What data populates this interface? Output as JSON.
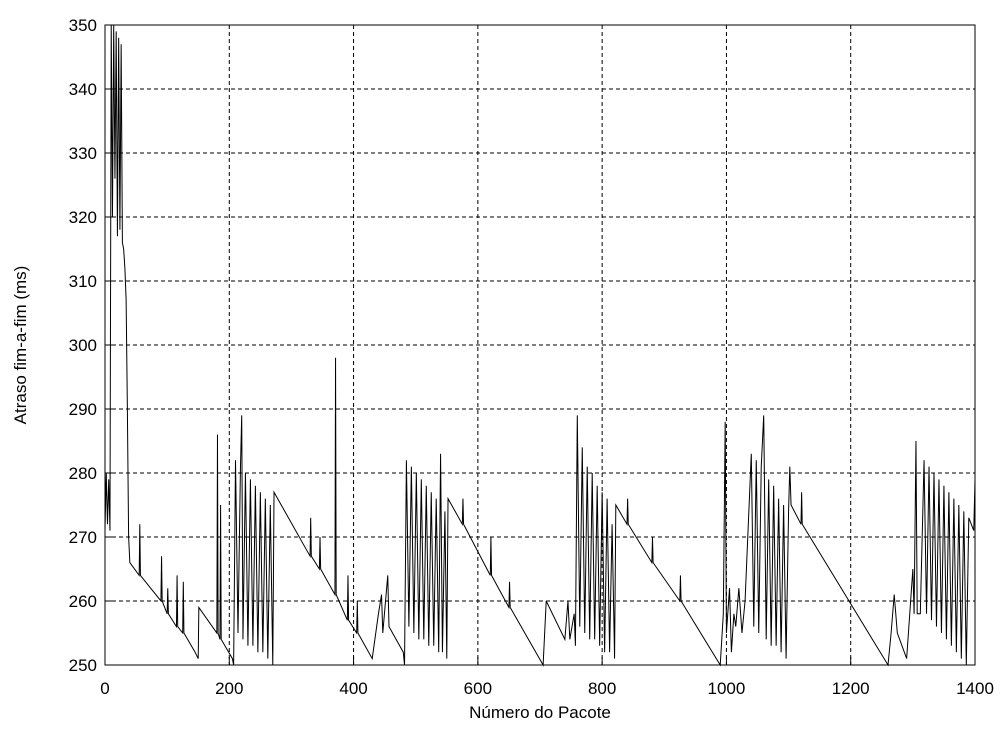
{
  "chart_data": {
    "type": "line",
    "xlabel": "Número do Pacote",
    "ylabel": "Atraso fim-a-fim (ms)",
    "color": "#000000",
    "grid": true,
    "xlim": [
      0,
      1400
    ],
    "xticks": [
      0,
      200,
      400,
      600,
      800,
      1000,
      1200,
      1400
    ],
    "ylim": [
      250,
      350
    ],
    "yticks": [
      250,
      260,
      270,
      280,
      290,
      300,
      310,
      320,
      330,
      340,
      350
    ],
    "x": [
      0,
      2,
      4,
      6,
      8,
      10,
      12,
      14,
      16,
      18,
      20,
      22,
      24,
      26,
      28,
      30,
      32,
      34,
      36,
      38,
      40,
      55,
      56,
      57,
      90,
      91,
      92,
      100,
      101,
      102,
      115,
      116,
      117,
      125,
      126,
      127,
      145,
      150,
      151,
      180,
      181,
      182,
      185,
      186,
      187,
      205,
      207,
      210,
      214,
      218,
      220,
      222,
      226,
      230,
      234,
      238,
      242,
      246,
      250,
      254,
      258,
      262,
      266,
      270,
      272,
      330,
      331,
      332,
      345,
      346,
      347,
      370,
      371,
      372,
      390,
      391,
      392,
      405,
      406,
      407,
      430,
      440,
      445,
      447,
      455,
      457,
      480,
      482,
      485,
      489,
      493,
      497,
      501,
      505,
      509,
      513,
      517,
      521,
      525,
      529,
      533,
      537,
      540,
      543,
      547,
      550,
      552,
      575,
      576,
      577,
      620,
      621,
      622,
      650,
      651,
      652,
      705,
      710,
      740,
      745,
      748,
      755,
      757,
      760,
      764,
      768,
      772,
      776,
      780,
      784,
      788,
      792,
      796,
      800,
      804,
      808,
      812,
      816,
      820,
      822,
      840,
      841,
      842,
      880,
      881,
      882,
      925,
      926,
      927,
      990,
      995,
      998,
      1000,
      1005,
      1008,
      1012,
      1015,
      1020,
      1025,
      1030,
      1040,
      1044,
      1048,
      1052,
      1056,
      1060,
      1064,
      1068,
      1072,
      1076,
      1080,
      1084,
      1088,
      1092,
      1096,
      1100,
      1102,
      1104,
      1120,
      1121,
      1122,
      1260,
      1265,
      1270,
      1275,
      1290,
      1300,
      1302,
      1305,
      1307,
      1312,
      1318,
      1322,
      1326,
      1330,
      1334,
      1338,
      1342,
      1346,
      1350,
      1354,
      1358,
      1362,
      1366,
      1370,
      1374,
      1378,
      1382,
      1386,
      1390,
      1398,
      1400
    ],
    "values": [
      271,
      280,
      272,
      279,
      271,
      350,
      320,
      350,
      326,
      349,
      317,
      348,
      318,
      347,
      316,
      315,
      312,
      307,
      290,
      270,
      266,
      264,
      272,
      264,
      260,
      267,
      260,
      258,
      262,
      258,
      256,
      264,
      256,
      255,
      263,
      255,
      252,
      251,
      259,
      255,
      286,
      255,
      254,
      275,
      254,
      251,
      250,
      282,
      255,
      281,
      289,
      254,
      280,
      253,
      279,
      253,
      278,
      252,
      277,
      252,
      276,
      251,
      275,
      250,
      277,
      267,
      273,
      267,
      265,
      270,
      265,
      261,
      298,
      261,
      257,
      264,
      257,
      255,
      260,
      255,
      251,
      258,
      261,
      255,
      264,
      256,
      252,
      250,
      282,
      256,
      281,
      255,
      280,
      254,
      279,
      254,
      278,
      253,
      277,
      253,
      276,
      252,
      283,
      252,
      274,
      251,
      276,
      272,
      276,
      272,
      264,
      270,
      264,
      259,
      263,
      259,
      250,
      260,
      254,
      260,
      254,
      258,
      253,
      289,
      256,
      284,
      255,
      281,
      254,
      280,
      254,
      278,
      253,
      277,
      252,
      276,
      252,
      272,
      251,
      275,
      272,
      276,
      272,
      266,
      270,
      266,
      260,
      264,
      260,
      250,
      258,
      288,
      255,
      262,
      252,
      258,
      256,
      262,
      255,
      260,
      283,
      256,
      282,
      255,
      281,
      289,
      254,
      279,
      253,
      278,
      253,
      276,
      252,
      275,
      251,
      274,
      281,
      275,
      272,
      277,
      272,
      250,
      255,
      261,
      255,
      251,
      265,
      258,
      285,
      258,
      258,
      282,
      258,
      281,
      257,
      280,
      256,
      279,
      255,
      278,
      254,
      277,
      253,
      276,
      252,
      275,
      251,
      274,
      250,
      273,
      271,
      279
    ]
  }
}
